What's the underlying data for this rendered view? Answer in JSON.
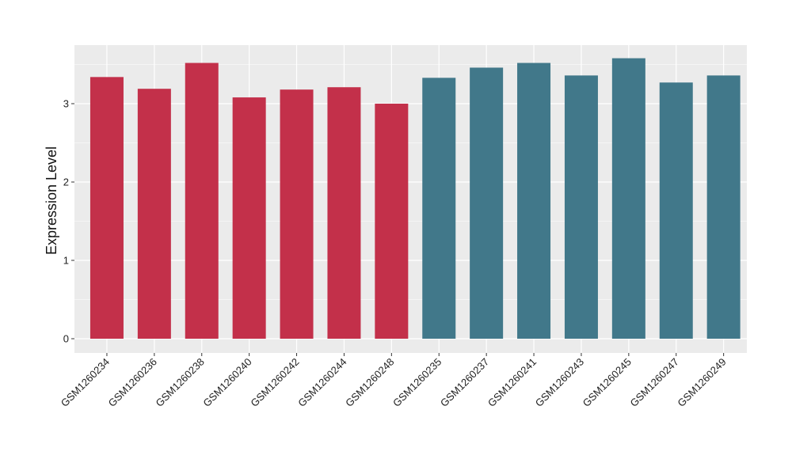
{
  "chart_data": {
    "type": "bar",
    "title": "",
    "xlabel": "",
    "ylabel": "Expression Level",
    "ylim": [
      0,
      3.6
    ],
    "yticks": [
      0,
      1,
      2,
      3
    ],
    "grid": true,
    "legend": "none",
    "categories": [
      "GSM1260234",
      "GSM1260236",
      "GSM1260238",
      "GSM1260240",
      "GSM1260242",
      "GSM1260244",
      "GSM1260248",
      "GSM1260235",
      "GSM1260237",
      "GSM1260241",
      "GSM1260243",
      "GSM1260245",
      "GSM1260247",
      "GSM1260249"
    ],
    "values": [
      3.34,
      3.19,
      3.52,
      3.08,
      3.18,
      3.21,
      3.0,
      3.33,
      3.46,
      3.52,
      3.36,
      3.58,
      3.27,
      3.36
    ],
    "bar_colors": [
      "#c3304a",
      "#c3304a",
      "#c3304a",
      "#c3304a",
      "#c3304a",
      "#c3304a",
      "#c3304a",
      "#41788a",
      "#41788a",
      "#41788a",
      "#41788a",
      "#41788a",
      "#41788a",
      "#41788a"
    ],
    "panel_color": "#ebebeb",
    "grid_color": "#ffffff"
  }
}
